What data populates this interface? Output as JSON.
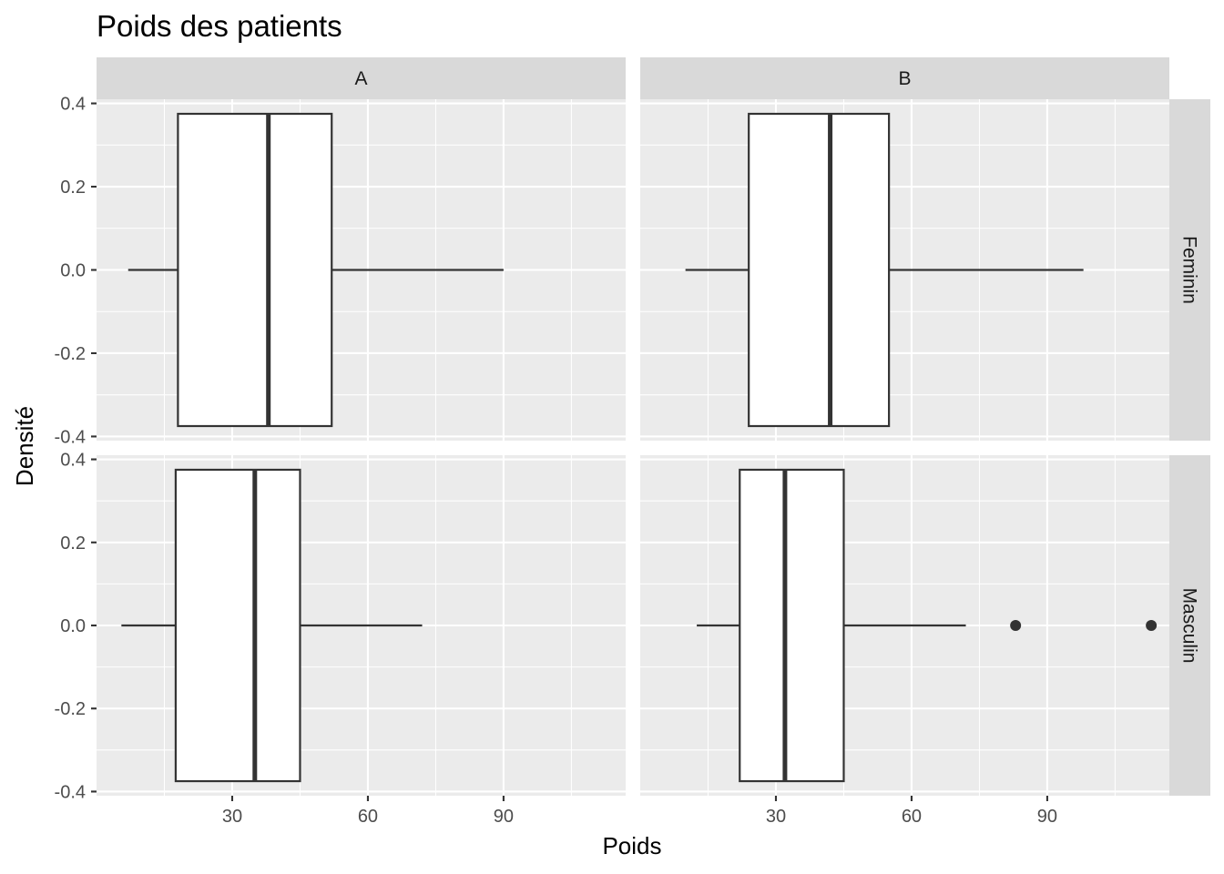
{
  "chart_data": {
    "type": "boxplot",
    "title": "Poids des patients",
    "xlabel": "Poids",
    "ylabel": "Densité",
    "xlim": [
      0,
      117
    ],
    "ylim": [
      -0.41,
      0.41
    ],
    "x_ticks": [
      30,
      60,
      90
    ],
    "x_tick_labels": [
      "30",
      "60",
      "90"
    ],
    "y_ticks": [
      -0.4,
      -0.2,
      0.0,
      0.2,
      0.4
    ],
    "y_tick_labels": [
      "-0.4",
      "-0.2",
      "0.0",
      "0.2",
      "0.4"
    ],
    "grid": true,
    "facet_cols": [
      "A",
      "B"
    ],
    "facet_rows": [
      "Feminin",
      "Masculin"
    ],
    "box_y_range": [
      -0.375,
      0.375
    ],
    "panels": [
      {
        "col": "A",
        "row": "Feminin",
        "whisker_low": 7,
        "q1": 18,
        "median": 38,
        "q3": 52,
        "whisker_high": 90,
        "outliers": []
      },
      {
        "col": "B",
        "row": "Feminin",
        "whisker_low": 10,
        "q1": 24,
        "median": 42,
        "q3": 55,
        "whisker_high": 98,
        "outliers": []
      },
      {
        "col": "A",
        "row": "Masculin",
        "whisker_low": 5.5,
        "q1": 17.5,
        "median": 35,
        "q3": 45,
        "whisker_high": 72,
        "outliers": []
      },
      {
        "col": "B",
        "row": "Masculin",
        "whisker_low": 12.5,
        "q1": 22,
        "median": 32,
        "q3": 45,
        "whisker_high": 72,
        "outliers": [
          83,
          113
        ]
      }
    ]
  }
}
